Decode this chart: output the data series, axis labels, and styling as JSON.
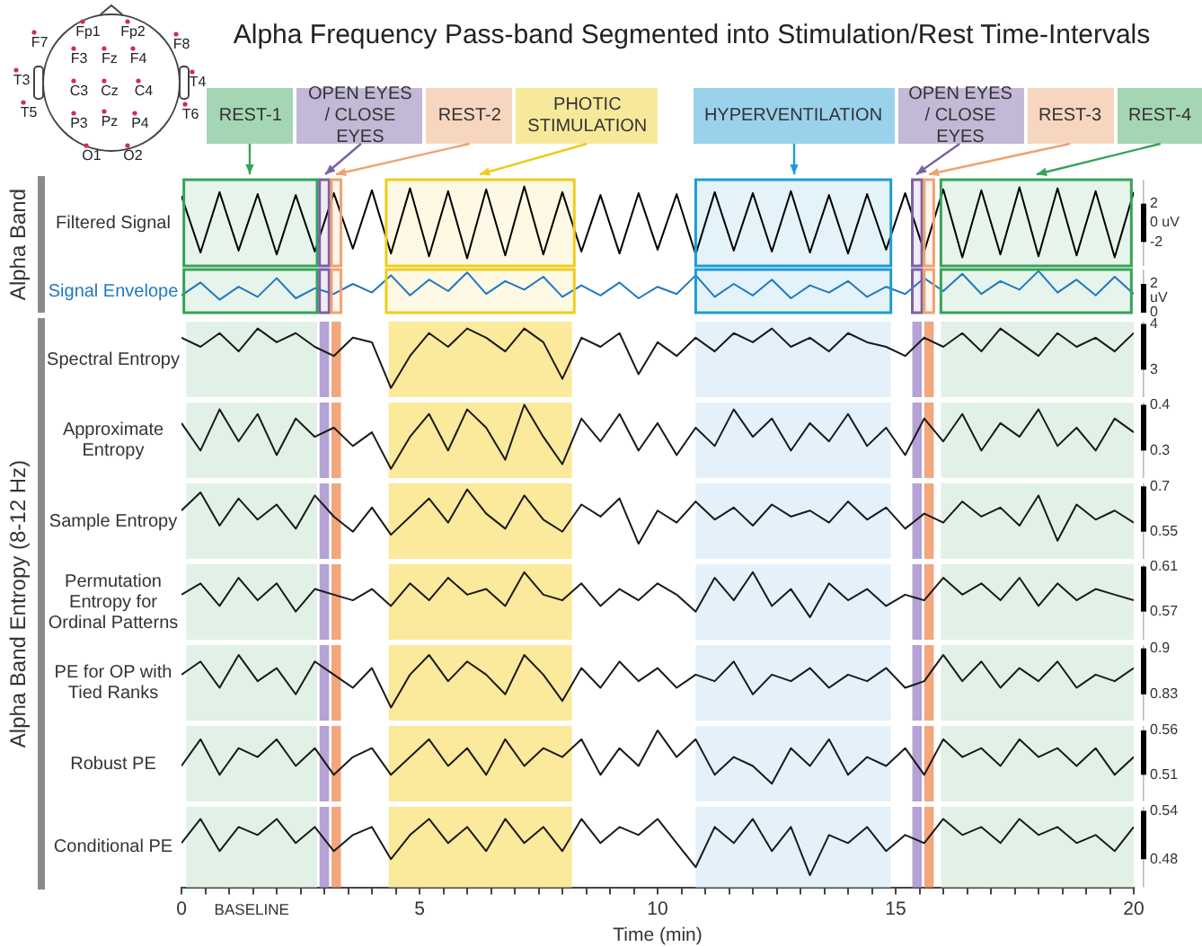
{
  "chart_data": [
    {
      "type": "other",
      "annotations": [
        "Fp1",
        "Fp2",
        "F7",
        "F8",
        "F3",
        "Fz",
        "F4",
        "T3",
        "T4",
        "C3",
        "Cz",
        "C4",
        "T5",
        "T6",
        "P3",
        "Pz",
        "P4",
        "O1",
        "O2"
      ]
    },
    {
      "type": "line",
      "title": "Alpha Frequency Pass-band Segmented into Stimulation/Rest Time-Intervals",
      "ylabel": "Filtered Signal",
      "annotations": [
        "Alpha Band"
      ],
      "tick_labels": "y",
      "color": "#000000",
      "xlim": [
        0,
        20
      ],
      "ylim": [
        -4.5,
        4.5
      ],
      "yticks": [
        2,
        {
          "value": 0,
          "label": "0 uV"
        },
        -2
      ],
      "x": [
        0,
        0.4,
        0.8,
        1.2,
        1.6,
        2,
        2.4,
        2.8,
        3.2,
        3.6,
        4,
        4.4,
        4.8,
        5.2,
        5.6,
        6,
        6.4,
        6.8,
        7.2,
        7.6,
        8,
        8.4,
        8.8,
        9.2,
        9.6,
        10,
        10.4,
        10.8,
        11.2,
        11.6,
        12,
        12.4,
        12.8,
        13.2,
        13.6,
        14,
        14.4,
        14.8,
        15.2,
        15.6,
        16,
        16.4,
        16.8,
        17.2,
        17.6,
        18,
        18.4,
        18.8,
        19.2,
        19.6,
        20
      ],
      "values": [
        2.8,
        -3.1,
        3.2,
        -2.9,
        3.0,
        -3.3,
        2.9,
        -3.0,
        3.1,
        -2.7,
        3.4,
        -3.2,
        3.6,
        -3.5,
        3.3,
        -3.7,
        3.5,
        -3.4,
        3.8,
        -3.3,
        3.2,
        -3.0,
        2.9,
        -3.2,
        3.1,
        -2.8,
        3.0,
        -3.3,
        3.2,
        -2.9,
        3.1,
        -3.0,
        3.3,
        -3.1,
        2.9,
        -3.2,
        3.0,
        -2.8,
        3.1,
        -3.0,
        3.5,
        -3.6,
        3.4,
        -3.3,
        3.7,
        -3.5,
        3.6,
        -3.4,
        3.3,
        -3.6,
        3.2
      ],
      "bands": [
        {
          "axis": "x",
          "from": 0.05,
          "to": 2.85,
          "label": "REST-1",
          "color": "#e7f4eb"
        },
        {
          "axis": "x",
          "from": 2.9,
          "to": 3.1,
          "label": "OPEN EYES / CLOSE EYES",
          "color": "#efecf4"
        },
        {
          "axis": "x",
          "from": 3.15,
          "to": 3.35,
          "label": "REST-2",
          "color": "#fdf4ee"
        },
        {
          "axis": "x",
          "from": 4.3,
          "to": 8.25,
          "label": "PHOTIC STIMULATION",
          "color": "#fdf9e4"
        },
        {
          "axis": "x",
          "from": 10.8,
          "to": 14.9,
          "label": "HYPERVENTILATION",
          "color": "#e4f3fa"
        },
        {
          "axis": "x",
          "from": 15.35,
          "to": 15.55,
          "label": "OPEN EYES / CLOSE EYES",
          "color": "#efecf4"
        },
        {
          "axis": "x",
          "from": 15.6,
          "to": 15.8,
          "label": "REST-3",
          "color": "#fdf4ee"
        },
        {
          "axis": "x",
          "from": 15.95,
          "to": 19.95,
          "label": "REST-4",
          "color": "#e7f4eb"
        }
      ]
    },
    {
      "type": "line",
      "ylabel": "Signal Envelope",
      "tick_labels": "y",
      "color": "#1f78c1",
      "xlim": [
        0,
        20
      ],
      "ylim": [
        0,
        3
      ],
      "yticks": [
        2,
        {
          "value": 1,
          "label": "uV"
        },
        0
      ],
      "x": [
        0,
        0.4,
        0.8,
        1.2,
        1.6,
        2,
        2.4,
        2.8,
        3.2,
        3.6,
        4,
        4.4,
        4.8,
        5.2,
        5.6,
        6,
        6.4,
        6.8,
        7.2,
        7.6,
        8,
        8.4,
        8.8,
        9.2,
        9.6,
        10,
        10.4,
        10.8,
        11.2,
        11.6,
        12,
        12.4,
        12.8,
        13.2,
        13.6,
        14,
        14.4,
        14.8,
        15.2,
        15.6,
        16,
        16.4,
        16.8,
        17.2,
        17.6,
        18,
        18.4,
        18.8,
        19.2,
        19.6,
        20
      ],
      "values": [
        1.2,
        2.1,
        0.9,
        1.8,
        1.1,
        2.4,
        1.0,
        1.7,
        1.3,
        2.0,
        1.4,
        2.6,
        1.2,
        2.3,
        1.5,
        2.8,
        1.3,
        2.2,
        1.6,
        2.5,
        1.1,
        1.9,
        1.2,
        2.1,
        1.0,
        1.8,
        1.3,
        2.6,
        1.1,
        2.0,
        1.2,
        2.3,
        1.0,
        1.9,
        1.4,
        2.2,
        1.1,
        1.8,
        1.3,
        2.4,
        1.5,
        2.7,
        1.3,
        2.2,
        1.6,
        2.9,
        1.4,
        2.3,
        1.2,
        2.5,
        1.3
      ],
      "bands": [
        {
          "axis": "x",
          "from": 0.05,
          "to": 2.85,
          "color": "#e7f4eb"
        },
        {
          "axis": "x",
          "from": 2.9,
          "to": 3.1,
          "color": "#efecf4"
        },
        {
          "axis": "x",
          "from": 3.15,
          "to": 3.35,
          "color": "#fdf4ee"
        },
        {
          "axis": "x",
          "from": 4.3,
          "to": 8.25,
          "color": "#fdf9e4"
        },
        {
          "axis": "x",
          "from": 10.8,
          "to": 14.9,
          "color": "#e4f3fa"
        },
        {
          "axis": "x",
          "from": 15.35,
          "to": 15.55,
          "color": "#efecf4"
        },
        {
          "axis": "x",
          "from": 15.6,
          "to": 15.8,
          "color": "#fdf4ee"
        },
        {
          "axis": "x",
          "from": 15.95,
          "to": 19.95,
          "color": "#e7f4eb"
        }
      ]
    },
    {
      "type": "line",
      "ylabel": "Spectral Entropy",
      "annotations": [
        "Alpha Band Entropy (8-12 Hz)"
      ],
      "tick_labels": "y",
      "color": "#1a1a1a",
      "xlim": [
        0,
        20
      ],
      "ylim": [
        2.4,
        4.05
      ],
      "yticks": [
        4,
        3
      ],
      "x": [
        0,
        0.4,
        0.8,
        1.2,
        1.6,
        2,
        2.4,
        2.8,
        3.2,
        3.6,
        4,
        4.4,
        4.8,
        5.2,
        5.6,
        6,
        6.4,
        6.8,
        7.2,
        7.6,
        8,
        8.4,
        8.8,
        9.2,
        9.6,
        10,
        10.4,
        10.8,
        11.2,
        11.6,
        12,
        12.4,
        12.8,
        13.2,
        13.6,
        14,
        14.4,
        14.8,
        15.2,
        15.6,
        16,
        16.4,
        16.8,
        17.2,
        17.6,
        18,
        18.4,
        18.8,
        19.2,
        19.6,
        20
      ],
      "values": [
        3.7,
        3.5,
        3.8,
        3.4,
        3.9,
        3.6,
        3.8,
        3.5,
        3.3,
        3.7,
        3.6,
        2.6,
        3.3,
        3.8,
        3.5,
        3.9,
        3.7,
        3.4,
        3.9,
        3.6,
        2.8,
        3.7,
        3.5,
        3.8,
        2.9,
        3.6,
        3.3,
        3.7,
        3.4,
        3.8,
        3.6,
        3.9,
        3.5,
        3.7,
        3.4,
        3.8,
        3.6,
        3.5,
        3.3,
        3.7,
        3.5,
        3.8,
        3.4,
        3.9,
        3.6,
        3.3,
        3.8,
        3.5,
        3.7,
        3.4,
        3.8
      ],
      "bands": [
        {
          "axis": "x",
          "from": 0.1,
          "to": 2.85,
          "color": "#e2f1e5"
        },
        {
          "axis": "x",
          "from": 2.9,
          "to": 3.1,
          "color": "#b4a3d4"
        },
        {
          "axis": "x",
          "from": 3.15,
          "to": 3.35,
          "color": "#f2a77d"
        },
        {
          "axis": "x",
          "from": 4.35,
          "to": 8.2,
          "color": "#fbe99c"
        },
        {
          "axis": "x",
          "from": 10.8,
          "to": 14.9,
          "color": "#e4f1fa"
        },
        {
          "axis": "x",
          "from": 15.35,
          "to": 15.55,
          "color": "#b4a3d4"
        },
        {
          "axis": "x",
          "from": 15.6,
          "to": 15.8,
          "color": "#f2a77d"
        },
        {
          "axis": "x",
          "from": 15.95,
          "to": 20,
          "color": "#e2f1e5"
        }
      ]
    },
    {
      "type": "line",
      "ylabel": "Approximate Entropy",
      "tick_labels": "y",
      "color": "#1a1a1a",
      "xlim": [
        0,
        20
      ],
      "ylim": [
        0.24,
        0.405
      ],
      "yticks": [
        0.4,
        0.3
      ],
      "x": [
        0,
        0.4,
        0.8,
        1.2,
        1.6,
        2,
        2.4,
        2.8,
        3.2,
        3.6,
        4,
        4.4,
        4.8,
        5.2,
        5.6,
        6,
        6.4,
        6.8,
        7.2,
        7.6,
        8,
        8.4,
        8.8,
        9.2,
        9.6,
        10,
        10.4,
        10.8,
        11.2,
        11.6,
        12,
        12.4,
        12.8,
        13.2,
        13.6,
        14,
        14.4,
        14.8,
        15.2,
        15.6,
        16,
        16.4,
        16.8,
        17.2,
        17.6,
        18,
        18.4,
        18.8,
        19.2,
        19.6,
        20
      ],
      "values": [
        0.36,
        0.3,
        0.39,
        0.32,
        0.38,
        0.29,
        0.37,
        0.33,
        0.35,
        0.31,
        0.34,
        0.26,
        0.33,
        0.38,
        0.3,
        0.39,
        0.35,
        0.28,
        0.4,
        0.33,
        0.27,
        0.37,
        0.32,
        0.38,
        0.3,
        0.36,
        0.29,
        0.35,
        0.31,
        0.39,
        0.33,
        0.37,
        0.3,
        0.36,
        0.32,
        0.38,
        0.31,
        0.35,
        0.29,
        0.37,
        0.32,
        0.38,
        0.3,
        0.36,
        0.33,
        0.39,
        0.31,
        0.35,
        0.3,
        0.37,
        0.34
      ],
      "bands": [
        {
          "axis": "x",
          "from": 0.1,
          "to": 2.85,
          "color": "#e2f1e5"
        },
        {
          "axis": "x",
          "from": 2.9,
          "to": 3.1,
          "color": "#b4a3d4"
        },
        {
          "axis": "x",
          "from": 3.15,
          "to": 3.35,
          "color": "#f2a77d"
        },
        {
          "axis": "x",
          "from": 4.35,
          "to": 8.2,
          "color": "#fbe99c"
        },
        {
          "axis": "x",
          "from": 10.8,
          "to": 14.9,
          "color": "#e4f1fa"
        },
        {
          "axis": "x",
          "from": 15.35,
          "to": 15.55,
          "color": "#b4a3d4"
        },
        {
          "axis": "x",
          "from": 15.6,
          "to": 15.8,
          "color": "#f2a77d"
        },
        {
          "axis": "x",
          "from": 15.95,
          "to": 20,
          "color": "#e2f1e5"
        }
      ]
    },
    {
      "type": "line",
      "ylabel": "Sample Entropy",
      "tick_labels": "y",
      "color": "#1a1a1a",
      "xlim": [
        0,
        20
      ],
      "ylim": [
        0.46,
        0.71
      ],
      "yticks": [
        0.7,
        0.55
      ],
      "x": [
        0,
        0.4,
        0.8,
        1.2,
        1.6,
        2,
        2.4,
        2.8,
        3.2,
        3.6,
        4,
        4.4,
        4.8,
        5.2,
        5.6,
        6,
        6.4,
        6.8,
        7.2,
        7.6,
        8,
        8.4,
        8.8,
        9.2,
        9.6,
        10,
        10.4,
        10.8,
        11.2,
        11.6,
        12,
        12.4,
        12.8,
        13.2,
        13.6,
        14,
        14.4,
        14.8,
        15.2,
        15.6,
        16,
        16.4,
        16.8,
        17.2,
        17.6,
        18,
        18.4,
        18.8,
        19.2,
        19.6,
        20
      ],
      "values": [
        0.62,
        0.68,
        0.57,
        0.66,
        0.59,
        0.64,
        0.56,
        0.67,
        0.6,
        0.55,
        0.63,
        0.54,
        0.6,
        0.66,
        0.58,
        0.69,
        0.61,
        0.56,
        0.67,
        0.59,
        0.55,
        0.64,
        0.6,
        0.66,
        0.51,
        0.62,
        0.58,
        0.65,
        0.59,
        0.63,
        0.57,
        0.64,
        0.6,
        0.62,
        0.58,
        0.65,
        0.59,
        0.63,
        0.56,
        0.61,
        0.58,
        0.65,
        0.6,
        0.63,
        0.57,
        0.67,
        0.52,
        0.64,
        0.59,
        0.62,
        0.58
      ],
      "bands": [
        {
          "axis": "x",
          "from": 0.1,
          "to": 2.85,
          "color": "#e2f1e5"
        },
        {
          "axis": "x",
          "from": 2.9,
          "to": 3.1,
          "color": "#b4a3d4"
        },
        {
          "axis": "x",
          "from": 3.15,
          "to": 3.35,
          "color": "#f2a77d"
        },
        {
          "axis": "x",
          "from": 4.35,
          "to": 8.2,
          "color": "#fbe99c"
        },
        {
          "axis": "x",
          "from": 10.8,
          "to": 14.9,
          "color": "#e4f1fa"
        },
        {
          "axis": "x",
          "from": 15.35,
          "to": 15.55,
          "color": "#b4a3d4"
        },
        {
          "axis": "x",
          "from": 15.6,
          "to": 15.8,
          "color": "#f2a77d"
        },
        {
          "axis": "x",
          "from": 15.95,
          "to": 20,
          "color": "#e2f1e5"
        }
      ]
    },
    {
      "type": "line",
      "ylabel": "Permutation Entropy for Ordinal Patterns",
      "tick_labels": "y",
      "color": "#1a1a1a",
      "xlim": [
        0,
        20
      ],
      "ylim": [
        0.545,
        0.612
      ],
      "yticks": [
        0.61,
        0.57
      ],
      "x": [
        0,
        0.4,
        0.8,
        1.2,
        1.6,
        2,
        2.4,
        2.8,
        3.2,
        3.6,
        4,
        4.4,
        4.8,
        5.2,
        5.6,
        6,
        6.4,
        6.8,
        7.2,
        7.6,
        8,
        8.4,
        8.8,
        9.2,
        9.6,
        10,
        10.4,
        10.8,
        11.2,
        11.6,
        12,
        12.4,
        12.8,
        13.2,
        13.6,
        14,
        14.4,
        14.8,
        15.2,
        15.6,
        16,
        16.4,
        16.8,
        17.2,
        17.6,
        18,
        18.4,
        18.8,
        19.2,
        19.6,
        20
      ],
      "values": [
        0.585,
        0.595,
        0.575,
        0.6,
        0.58,
        0.595,
        0.57,
        0.59,
        0.585,
        0.58,
        0.59,
        0.575,
        0.595,
        0.58,
        0.6,
        0.585,
        0.59,
        0.575,
        0.605,
        0.585,
        0.58,
        0.595,
        0.575,
        0.59,
        0.58,
        0.595,
        0.585,
        0.57,
        0.6,
        0.58,
        0.605,
        0.575,
        0.59,
        0.565,
        0.595,
        0.58,
        0.59,
        0.575,
        0.585,
        0.58,
        0.6,
        0.585,
        0.595,
        0.58,
        0.6,
        0.575,
        0.595,
        0.58,
        0.59,
        0.585,
        0.58
      ],
      "bands": [
        {
          "axis": "x",
          "from": 0.1,
          "to": 2.85,
          "color": "#e2f1e5"
        },
        {
          "axis": "x",
          "from": 2.9,
          "to": 3.1,
          "color": "#b4a3d4"
        },
        {
          "axis": "x",
          "from": 3.15,
          "to": 3.35,
          "color": "#f2a77d"
        },
        {
          "axis": "x",
          "from": 4.35,
          "to": 8.2,
          "color": "#fbe99c"
        },
        {
          "axis": "x",
          "from": 10.8,
          "to": 14.9,
          "color": "#e4f1fa"
        },
        {
          "axis": "x",
          "from": 15.35,
          "to": 15.55,
          "color": "#b4a3d4"
        },
        {
          "axis": "x",
          "from": 15.6,
          "to": 15.8,
          "color": "#f2a77d"
        },
        {
          "axis": "x",
          "from": 15.95,
          "to": 20,
          "color": "#e2f1e5"
        }
      ]
    },
    {
      "type": "line",
      "ylabel": "PE for OP with Tied Ranks",
      "tick_labels": "y",
      "color": "#1a1a1a",
      "xlim": [
        0,
        20
      ],
      "ylim": [
        0.79,
        0.905
      ],
      "yticks": [
        0.9,
        0.83
      ],
      "x": [
        0,
        0.4,
        0.8,
        1.2,
        1.6,
        2,
        2.4,
        2.8,
        3.2,
        3.6,
        4,
        4.4,
        4.8,
        5.2,
        5.6,
        6,
        6.4,
        6.8,
        7.2,
        7.6,
        8,
        8.4,
        8.8,
        9.2,
        9.6,
        10,
        10.4,
        10.8,
        11.2,
        11.6,
        12,
        12.4,
        12.8,
        13.2,
        13.6,
        14,
        14.4,
        14.8,
        15.2,
        15.6,
        16,
        16.4,
        16.8,
        17.2,
        17.6,
        18,
        18.4,
        18.8,
        19.2,
        19.6,
        20
      ],
      "values": [
        0.86,
        0.88,
        0.84,
        0.89,
        0.85,
        0.87,
        0.83,
        0.88,
        0.86,
        0.84,
        0.87,
        0.81,
        0.86,
        0.89,
        0.85,
        0.88,
        0.86,
        0.83,
        0.89,
        0.86,
        0.82,
        0.87,
        0.84,
        0.88,
        0.85,
        0.87,
        0.84,
        0.86,
        0.85,
        0.88,
        0.83,
        0.86,
        0.85,
        0.87,
        0.84,
        0.86,
        0.85,
        0.87,
        0.84,
        0.85,
        0.89,
        0.85,
        0.88,
        0.84,
        0.87,
        0.85,
        0.88,
        0.84,
        0.86,
        0.85,
        0.87
      ],
      "bands": [
        {
          "axis": "x",
          "from": 0.1,
          "to": 2.85,
          "color": "#e2f1e5"
        },
        {
          "axis": "x",
          "from": 2.9,
          "to": 3.1,
          "color": "#b4a3d4"
        },
        {
          "axis": "x",
          "from": 3.15,
          "to": 3.35,
          "color": "#f2a77d"
        },
        {
          "axis": "x",
          "from": 4.35,
          "to": 8.2,
          "color": "#fbe99c"
        },
        {
          "axis": "x",
          "from": 10.8,
          "to": 14.9,
          "color": "#e4f1fa"
        },
        {
          "axis": "x",
          "from": 15.35,
          "to": 15.55,
          "color": "#b4a3d4"
        },
        {
          "axis": "x",
          "from": 15.6,
          "to": 15.8,
          "color": "#f2a77d"
        },
        {
          "axis": "x",
          "from": 15.95,
          "to": 20,
          "color": "#e2f1e5"
        }
      ]
    },
    {
      "type": "line",
      "ylabel": "Robust PE",
      "tick_labels": "y",
      "color": "#1a1a1a",
      "xlim": [
        0,
        20
      ],
      "ylim": [
        0.48,
        0.565
      ],
      "yticks": [
        0.56,
        0.51
      ],
      "x": [
        0,
        0.4,
        0.8,
        1.2,
        1.6,
        2,
        2.4,
        2.8,
        3.2,
        3.6,
        4,
        4.4,
        4.8,
        5.2,
        5.6,
        6,
        6.4,
        6.8,
        7.2,
        7.6,
        8,
        8.4,
        8.8,
        9.2,
        9.6,
        10,
        10.4,
        10.8,
        11.2,
        11.6,
        12,
        12.4,
        12.8,
        13.2,
        13.6,
        14,
        14.4,
        14.8,
        15.2,
        15.6,
        16,
        16.4,
        16.8,
        17.2,
        17.6,
        18,
        18.4,
        18.8,
        19.2,
        19.6,
        20
      ],
      "values": [
        0.52,
        0.55,
        0.51,
        0.54,
        0.53,
        0.55,
        0.52,
        0.54,
        0.51,
        0.53,
        0.54,
        0.51,
        0.53,
        0.55,
        0.52,
        0.54,
        0.51,
        0.55,
        0.52,
        0.54,
        0.53,
        0.55,
        0.51,
        0.54,
        0.52,
        0.56,
        0.53,
        0.55,
        0.51,
        0.53,
        0.52,
        0.5,
        0.54,
        0.52,
        0.55,
        0.51,
        0.53,
        0.52,
        0.54,
        0.51,
        0.55,
        0.53,
        0.54,
        0.52,
        0.55,
        0.53,
        0.54,
        0.52,
        0.54,
        0.51,
        0.53
      ],
      "bands": [
        {
          "axis": "x",
          "from": 0.1,
          "to": 2.85,
          "color": "#e2f1e5"
        },
        {
          "axis": "x",
          "from": 2.9,
          "to": 3.1,
          "color": "#b4a3d4"
        },
        {
          "axis": "x",
          "from": 3.15,
          "to": 3.35,
          "color": "#f2a77d"
        },
        {
          "axis": "x",
          "from": 4.35,
          "to": 8.2,
          "color": "#fbe99c"
        },
        {
          "axis": "x",
          "from": 10.8,
          "to": 14.9,
          "color": "#e4f1fa"
        },
        {
          "axis": "x",
          "from": 15.35,
          "to": 15.55,
          "color": "#b4a3d4"
        },
        {
          "axis": "x",
          "from": 15.6,
          "to": 15.8,
          "color": "#f2a77d"
        },
        {
          "axis": "x",
          "from": 15.95,
          "to": 20,
          "color": "#e2f1e5"
        }
      ]
    },
    {
      "type": "line",
      "ylabel": "Conditional PE",
      "xlabel": "Time (min)",
      "annotations": [
        "BASELINE"
      ],
      "color": "#1a1a1a",
      "xlim": [
        0,
        20
      ],
      "ylim": [
        0.445,
        0.545
      ],
      "yticks": [
        0.54,
        0.48
      ],
      "xticks": [
        0,
        {
          "value": 0.5,
          "label": null
        },
        {
          "value": 1,
          "label": null
        },
        {
          "value": 1.5,
          "label": null
        },
        {
          "value": 2,
          "label": null
        },
        {
          "value": 2.5,
          "label": null
        },
        {
          "value": 3,
          "label": null
        },
        {
          "value": 3.5,
          "label": null
        },
        {
          "value": 4,
          "label": null
        },
        {
          "value": 4.5,
          "label": null
        },
        5,
        {
          "value": 5.5,
          "label": null
        },
        {
          "value": 6,
          "label": null
        },
        {
          "value": 6.5,
          "label": null
        },
        {
          "value": 7,
          "label": null
        },
        {
          "value": 7.5,
          "label": null
        },
        {
          "value": 8,
          "label": null
        },
        {
          "value": 8.5,
          "label": null
        },
        {
          "value": 9,
          "label": null
        },
        {
          "value": 9.5,
          "label": null
        },
        10,
        {
          "value": 10.5,
          "label": null
        },
        {
          "value": 11,
          "label": null
        },
        {
          "value": 11.5,
          "label": null
        },
        {
          "value": 12,
          "label": null
        },
        {
          "value": 12.5,
          "label": null
        },
        {
          "value": 13,
          "label": null
        },
        {
          "value": 13.5,
          "label": null
        },
        {
          "value": 14,
          "label": null
        },
        {
          "value": 14.5,
          "label": null
        },
        15,
        {
          "value": 15.5,
          "label": null
        },
        {
          "value": 16,
          "label": null
        },
        {
          "value": 16.5,
          "label": null
        },
        {
          "value": 17,
          "label": null
        },
        {
          "value": 17.5,
          "label": null
        },
        {
          "value": 18,
          "label": null
        },
        {
          "value": 18.5,
          "label": null
        },
        {
          "value": 19,
          "label": null
        },
        {
          "value": 19.5,
          "label": null
        },
        20
      ],
      "x": [
        0,
        0.4,
        0.8,
        1.2,
        1.6,
        2,
        2.4,
        2.8,
        3.2,
        3.6,
        4,
        4.4,
        4.8,
        5.2,
        5.6,
        6,
        6.4,
        6.8,
        7.2,
        7.6,
        8,
        8.4,
        8.8,
        9.2,
        9.6,
        10,
        10.4,
        10.8,
        11.2,
        11.6,
        12,
        12.4,
        12.8,
        13.2,
        13.6,
        14,
        14.4,
        14.8,
        15.2,
        15.6,
        16,
        16.4,
        16.8,
        17.2,
        17.6,
        18,
        18.4,
        18.8,
        19.2,
        19.6,
        20
      ],
      "values": [
        0.5,
        0.53,
        0.49,
        0.52,
        0.51,
        0.53,
        0.5,
        0.52,
        0.49,
        0.51,
        0.52,
        0.48,
        0.51,
        0.53,
        0.5,
        0.52,
        0.49,
        0.53,
        0.5,
        0.52,
        0.49,
        0.53,
        0.5,
        0.52,
        0.51,
        0.53,
        0.5,
        0.47,
        0.52,
        0.5,
        0.53,
        0.49,
        0.52,
        0.46,
        0.51,
        0.5,
        0.52,
        0.49,
        0.51,
        0.5,
        0.53,
        0.51,
        0.52,
        0.5,
        0.53,
        0.51,
        0.52,
        0.5,
        0.51,
        0.49,
        0.52
      ],
      "bands": [
        {
          "axis": "x",
          "from": 0.1,
          "to": 2.85,
          "color": "#e2f1e5"
        },
        {
          "axis": "x",
          "from": 2.9,
          "to": 3.1,
          "color": "#b4a3d4"
        },
        {
          "axis": "x",
          "from": 3.15,
          "to": 3.35,
          "color": "#f2a77d"
        },
        {
          "axis": "x",
          "from": 4.35,
          "to": 8.2,
          "color": "#fbe99c"
        },
        {
          "axis": "x",
          "from": 10.8,
          "to": 14.9,
          "color": "#e4f1fa"
        },
        {
          "axis": "x",
          "from": 15.35,
          "to": 15.55,
          "color": "#b4a3d4"
        },
        {
          "axis": "x",
          "from": 15.6,
          "to": 15.8,
          "color": "#f2a77d"
        },
        {
          "axis": "x",
          "from": 15.95,
          "to": 20,
          "color": "#e2f1e5"
        }
      ]
    }
  ]
}
